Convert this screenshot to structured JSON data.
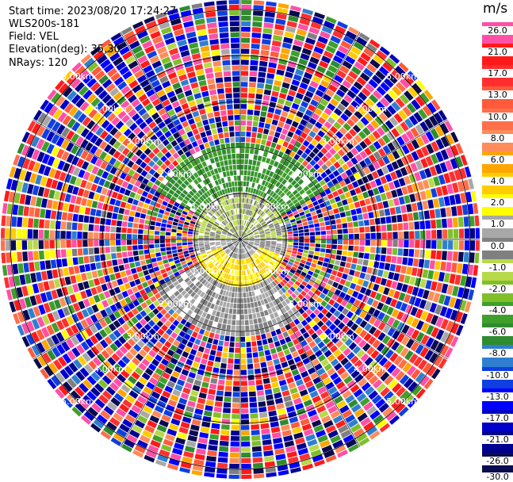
{
  "header": {
    "start_time": "Start time: 2023/08/20 17:24:27",
    "instrument": "WLS200s-181",
    "field": "Field: VEL",
    "elevation": "Elevation(deg): 35.30",
    "nrays": "NRays: 120"
  },
  "colorbar": {
    "unit": "m/s",
    "ticks": [
      "26.0",
      "21.0",
      "17.0",
      "13.0",
      "10.0",
      "8.0",
      "6.0",
      "4.0",
      "2.0",
      "1.0",
      "0.0",
      "-1.0",
      "-2.0",
      "-4.0",
      "-6.0",
      "-8.0",
      "-10.0",
      "-13.0",
      "-17.0",
      "-21.0",
      "-26.0",
      "-30.0"
    ],
    "colors": [
      "#ff4fa6",
      "#ff1a1a",
      "#ff2f2f",
      "#ff5a3a",
      "#ff6f4a",
      "#ff8c5a",
      "#ffa500",
      "#ffcc00",
      "#ffff00",
      "#a8a8a8",
      "#808080",
      "#b8d94a",
      "#7fbf2a",
      "#3f9f2a",
      "#2e8b2e",
      "#2f7fd0",
      "#0f3fe0",
      "#0000ff",
      "#0000c8",
      "#000090",
      "#0a0a50"
    ]
  },
  "chart_data": {
    "type": "heatmap",
    "title": "",
    "projection": "PPI",
    "n_rays": 120,
    "range_rings_km": [
      1.0,
      2.0,
      3.0,
      4.0,
      5.0
    ],
    "ring_labels": [
      "1.00km",
      "2.00km",
      "3.00km",
      "4.00km",
      "5.00km"
    ],
    "value_range": [
      -30.0,
      26.0
    ],
    "units": "m/s",
    "sectors_near_range": [
      {
        "az_from": 270,
        "az_to": 90,
        "r_max_km": 1.1,
        "value": -1.0
      },
      {
        "az_from": 90,
        "az_to": 270,
        "r_max_km": 1.1,
        "value": 0.0
      },
      {
        "az_from": 110,
        "az_to": 250,
        "r_min_km": 0.5,
        "r_max_km": 1.1,
        "value": 2.0
      },
      {
        "az_from": 300,
        "az_to": 60,
        "r_min_km": 1.1,
        "r_max_km": 2.1,
        "value": -6.0
      },
      {
        "az_from": 140,
        "az_to": 240,
        "r_min_km": 1.1,
        "r_max_km": 2.1,
        "value": 0.0
      }
    ]
  }
}
